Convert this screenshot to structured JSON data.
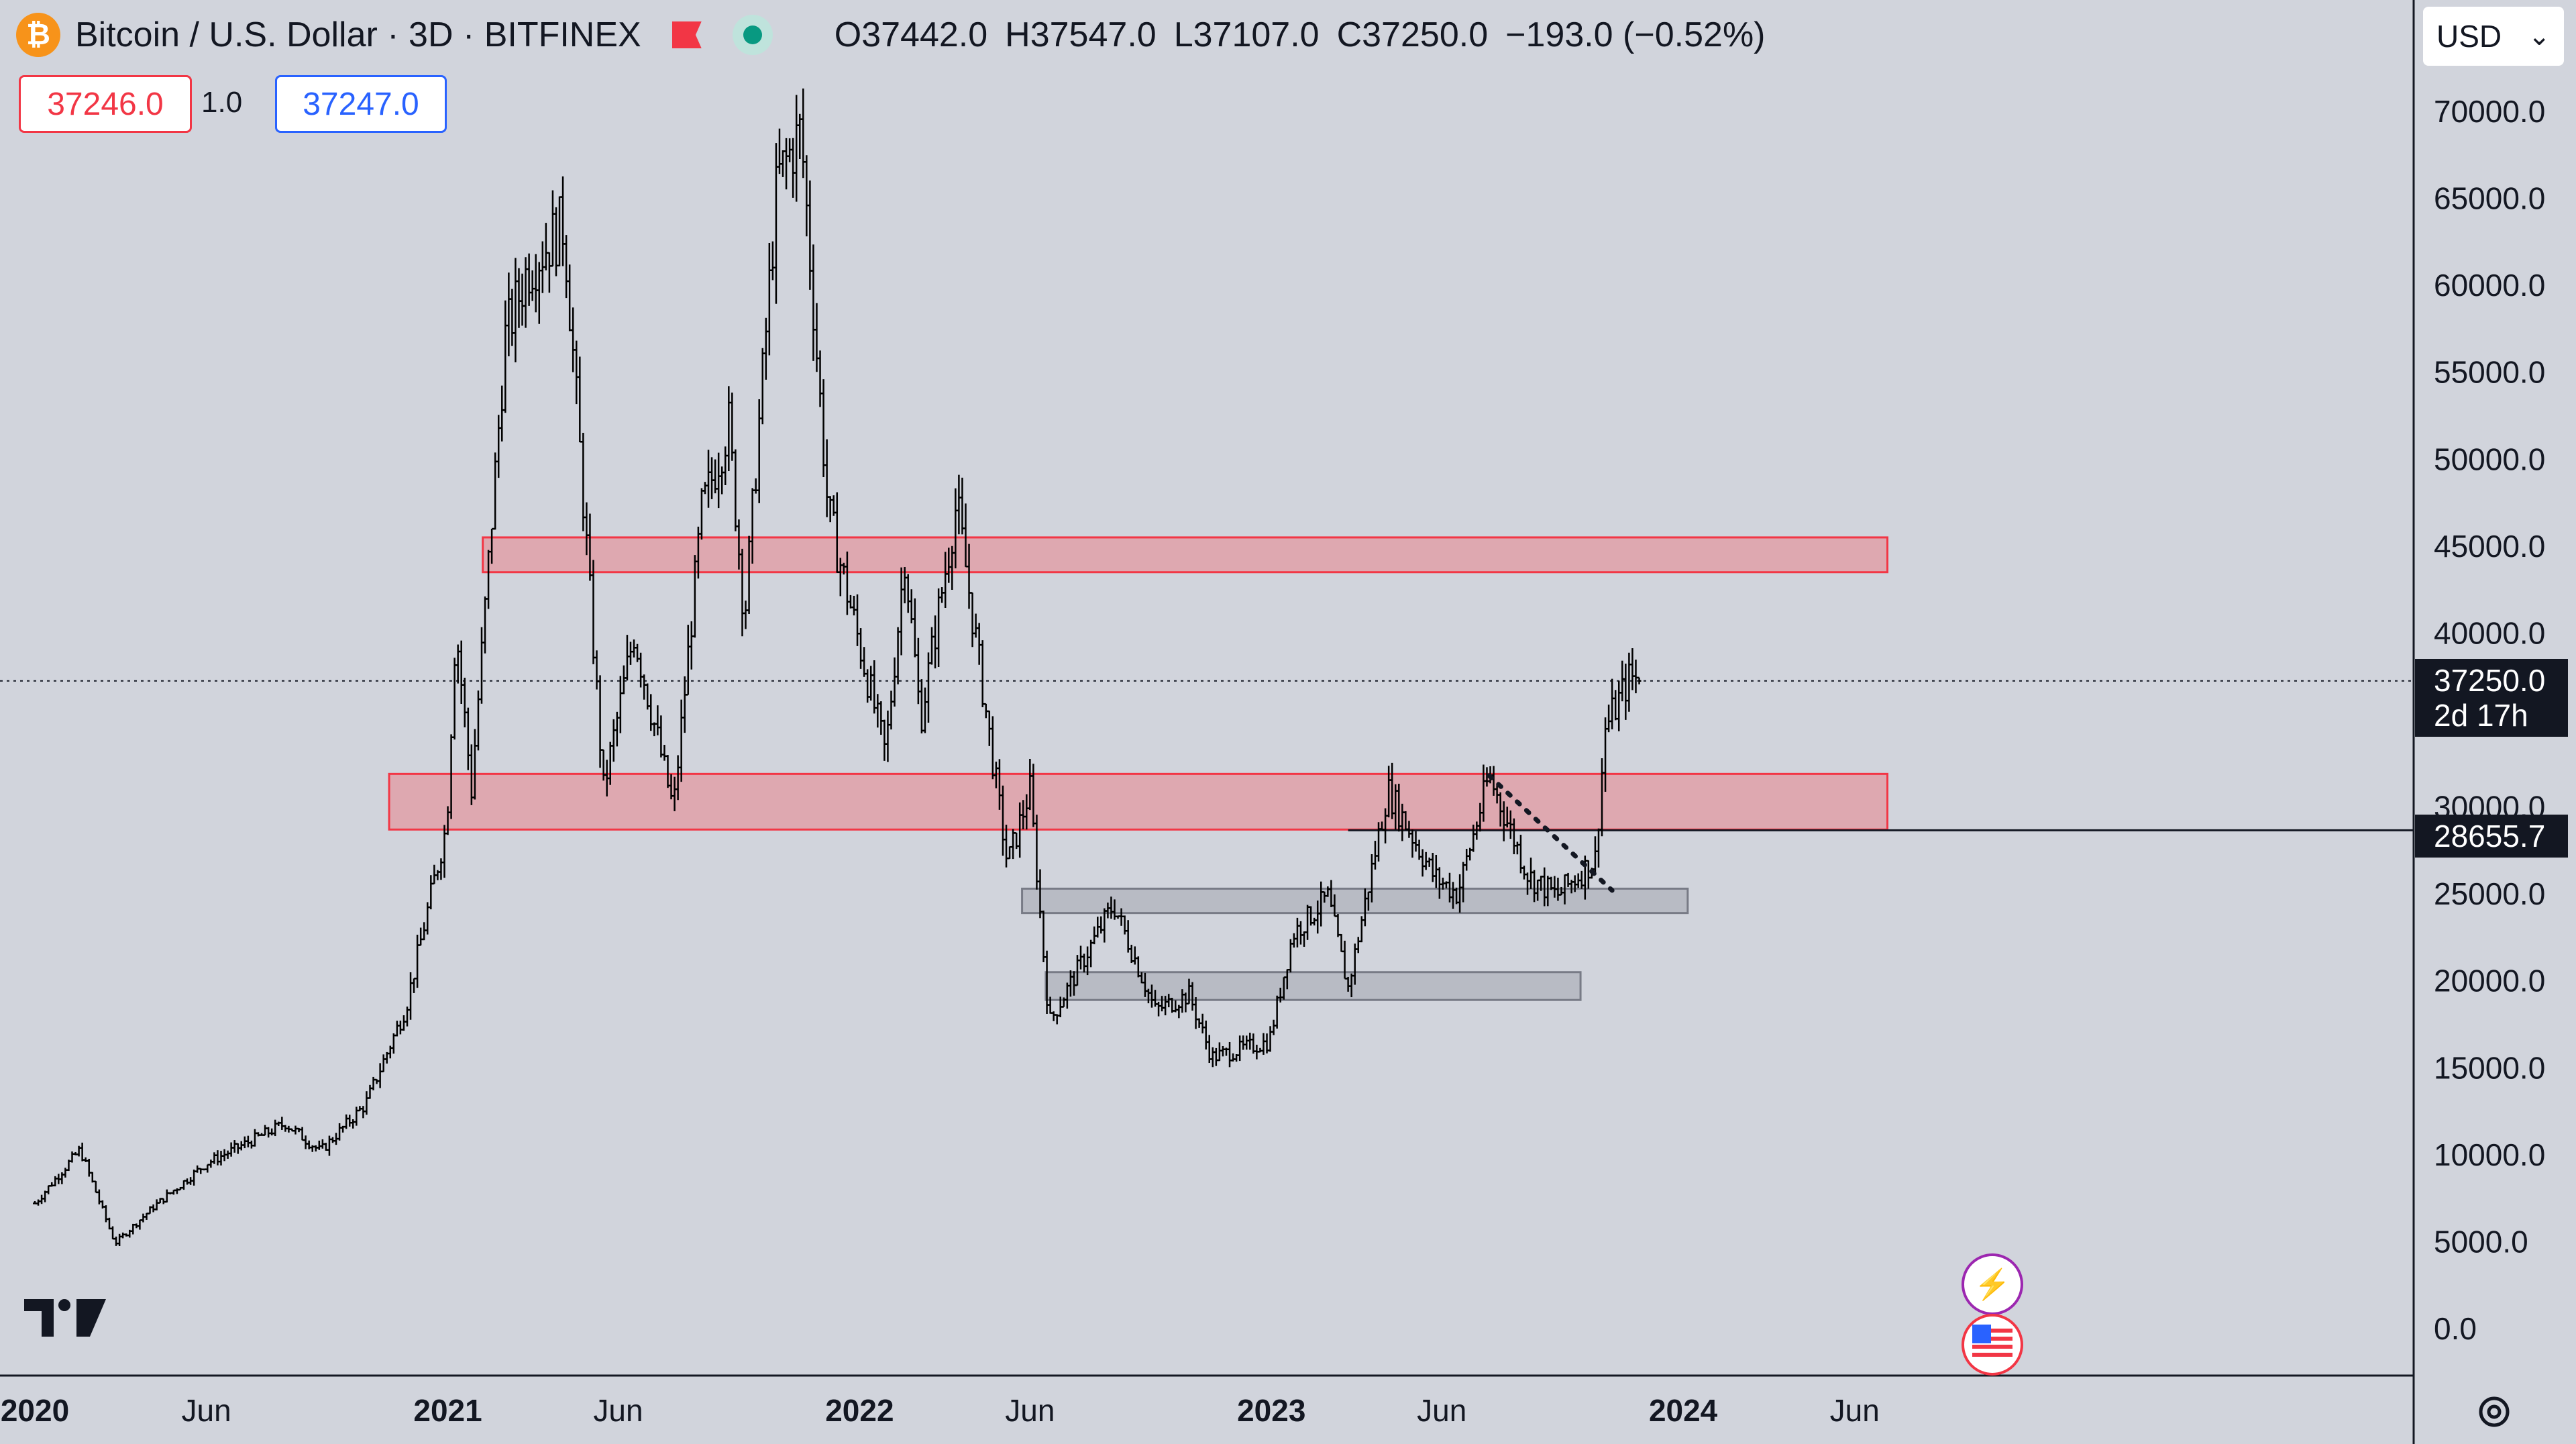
{
  "header": {
    "symbol": "Bitcoin / U.S. Dollar · 3D · BITFINEX",
    "logo_glyph": "₿",
    "ohlc": {
      "o": "O",
      "o_val": "37442.0",
      "h": "H",
      "h_val": "37547.0",
      "l": "L",
      "l_val": "37107.0",
      "c": "C",
      "c_val": "37250.0",
      "change": "−193.0 (−0.52%)"
    }
  },
  "trade": {
    "sell": "37246.0",
    "spread": "1.0",
    "buy": "37247.0"
  },
  "currency": {
    "selected": "USD",
    "chevron": "⌄"
  },
  "price_axis": {
    "ticks": [
      "70000.0",
      "65000.0",
      "60000.0",
      "55000.0",
      "50000.0",
      "45000.0",
      "40000.0",
      "30000.0",
      "25000.0",
      "20000.0",
      "15000.0",
      "10000.0",
      "5000.0",
      "0.0"
    ],
    "current_price": "37250.0",
    "countdown": "2d 17h",
    "level_price": "28655.7"
  },
  "time_axis": {
    "ticks": [
      "2020",
      "Jun",
      "2021",
      "Jun",
      "2022",
      "Jun",
      "2023",
      "Jun",
      "2024",
      "Jun"
    ]
  },
  "icons": {
    "bolt": "⚡"
  },
  "chart_data": {
    "type": "ohlc",
    "ylim": [
      0,
      70000
    ],
    "anchors": [
      [
        "2020-01-01",
        7200
      ],
      [
        "2020-02-10",
        10300
      ],
      [
        "2020-03-12",
        4900
      ],
      [
        "2020-04-15",
        7000
      ],
      [
        "2020-06-01",
        9500
      ],
      [
        "2020-08-10",
        11800
      ],
      [
        "2020-09-10",
        10200
      ],
      [
        "2020-10-20",
        12900
      ],
      [
        "2020-11-25",
        18500
      ],
      [
        "2020-12-31",
        29000
      ],
      [
        "2021-01-08",
        40500
      ],
      [
        "2021-01-22",
        31000
      ],
      [
        "2021-02-21",
        57000
      ],
      [
        "2021-03-13",
        61000
      ],
      [
        "2021-04-14",
        63500
      ],
      [
        "2021-05-19",
        31000
      ],
      [
        "2021-06-15",
        40000
      ],
      [
        "2021-07-20",
        29800
      ],
      [
        "2021-08-14",
        47000
      ],
      [
        "2021-09-07",
        52000
      ],
      [
        "2021-09-21",
        40800
      ],
      [
        "2021-10-20",
        66000
      ],
      [
        "2021-11-10",
        68900
      ],
      [
        "2021-12-04",
        47000
      ],
      [
        "2022-01-24",
        33000
      ],
      [
        "2022-02-10",
        44500
      ],
      [
        "2022-02-24",
        35000
      ],
      [
        "2022-03-28",
        47500
      ],
      [
        "2022-05-12",
        26700
      ],
      [
        "2022-06-01",
        31000
      ],
      [
        "2022-06-18",
        17600
      ],
      [
        "2022-08-14",
        24400
      ],
      [
        "2022-09-20",
        18300
      ],
      [
        "2022-10-20",
        19200
      ],
      [
        "2022-11-09",
        15600
      ],
      [
        "2022-12-30",
        16500
      ],
      [
        "2023-01-20",
        22700
      ],
      [
        "2023-02-20",
        24800
      ],
      [
        "2023-03-10",
        19600
      ],
      [
        "2023-04-14",
        31000
      ],
      [
        "2023-05-25",
        26000
      ],
      [
        "2023-06-15",
        25000
      ],
      [
        "2023-07-13",
        31800
      ],
      [
        "2023-08-17",
        26000
      ],
      [
        "2023-09-11",
        24900
      ],
      [
        "2023-10-15",
        27000
      ],
      [
        "2023-10-24",
        34500
      ],
      [
        "2023-11-15",
        37500
      ],
      [
        "2023-11-25",
        37250
      ]
    ],
    "seed": 7,
    "zones": [
      {
        "kind": "resistance",
        "from": "2021-02-01",
        "to": "2024-06-30",
        "y1": 43500,
        "y2": 45500
      },
      {
        "kind": "resistance",
        "from": "2020-11-10",
        "to": "2024-06-30",
        "y1": 28700,
        "y2": 31900
      },
      {
        "kind": "support",
        "from": "2022-05-25",
        "to": "2024-01-05",
        "y1": 23900,
        "y2": 25300
      },
      {
        "kind": "support",
        "from": "2022-06-15",
        "to": "2023-10-02",
        "y1": 18900,
        "y2": 20500
      }
    ],
    "trendline": {
      "from": [
        "2023-07-13",
        31800
      ],
      "to": [
        "2023-10-30",
        25200
      ]
    },
    "level_line": {
      "from": "2023-03-10",
      "value": 28655.7
    },
    "last_price": 37250
  },
  "colors": {
    "background": "#d1d4dc",
    "candle": "#000000",
    "resistance_fill": "#dea8b0",
    "resistance_stroke": "#f23645",
    "support_fill": "#b8bbc4",
    "support_stroke": "#787b86"
  }
}
